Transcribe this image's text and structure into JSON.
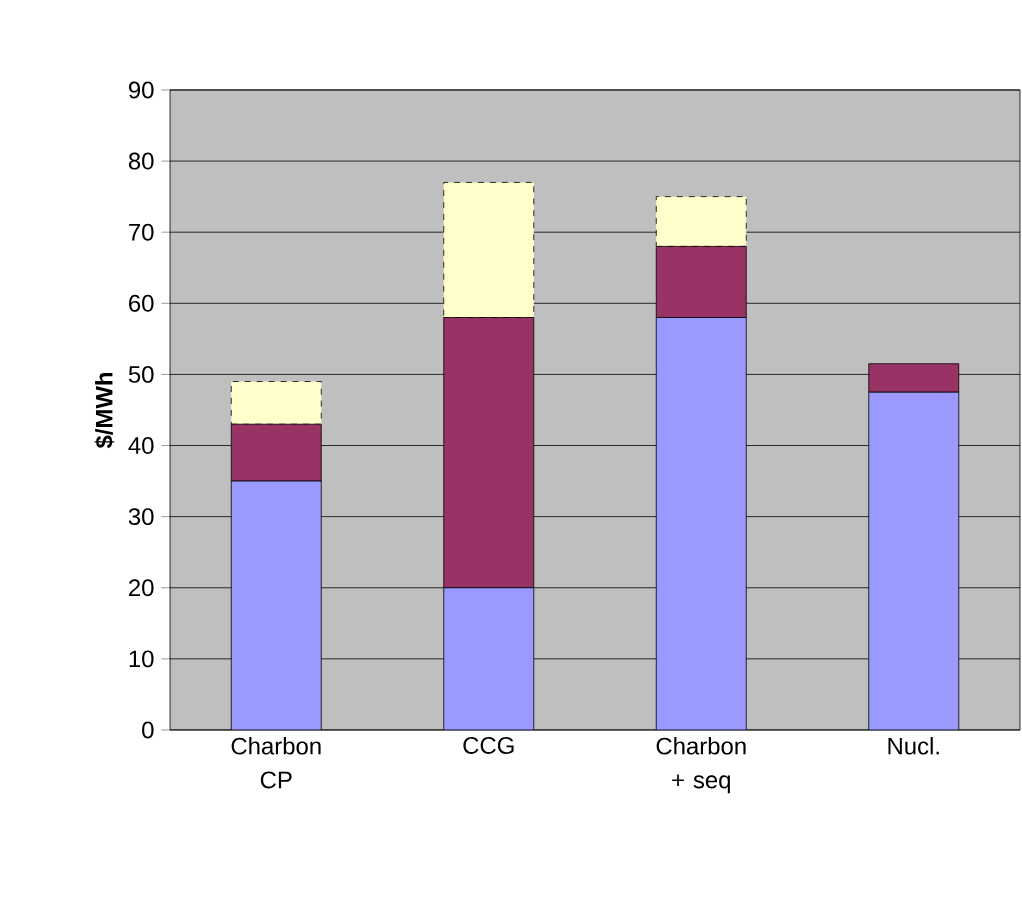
{
  "chart_data": {
    "type": "bar",
    "ylabel": "$/MWh",
    "categories": [
      "Charbon CP",
      "CCG",
      "Charbon + seq",
      "Nucl."
    ],
    "stacked": true,
    "ylim": [
      0,
      90
    ],
    "yticks": [
      0,
      10,
      20,
      30,
      40,
      50,
      60,
      70,
      80,
      90
    ],
    "grid": "y",
    "series": [
      {
        "color": "#9999ff",
        "values": [
          35,
          20,
          58,
          47.5
        ]
      },
      {
        "color": "#993366",
        "values": [
          8,
          38,
          10,
          4
        ]
      },
      {
        "color": "#ffffcc",
        "values": [
          6,
          19,
          7,
          null
        ],
        "line_style": "dashed"
      }
    ]
  }
}
